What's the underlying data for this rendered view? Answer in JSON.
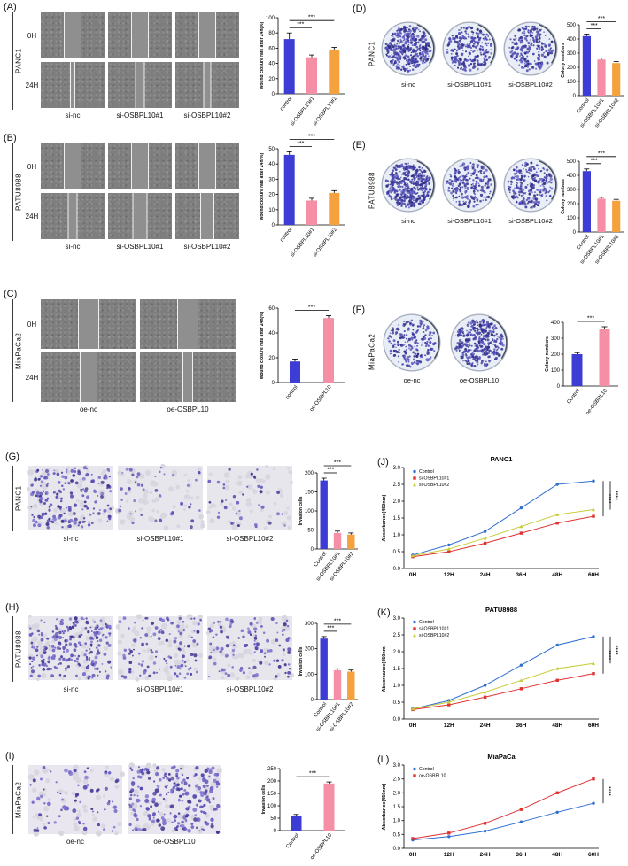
{
  "panels": [
    {
      "label": "(A)",
      "cell_line": "PANC1",
      "row_labels": [
        "0H",
        "24H"
      ],
      "col_labels": [
        "si-nc",
        "si-OSBPL10#1",
        "si-OSBPL10#2"
      ]
    },
    {
      "label": "(B)",
      "cell_line": "PATU8988",
      "row_labels": [
        "0H",
        "24H"
      ],
      "col_labels": [
        "si-nc",
        "si-OSBPL10#1",
        "si-OSBPL10#2"
      ]
    },
    {
      "label": "(C)",
      "cell_line": "MiaPaCa2",
      "row_labels": [
        "0H",
        "24H"
      ],
      "col_labels": [
        "oe-nc",
        "oe-OSBPL10"
      ]
    },
    {
      "label": "(D)",
      "cell_line": "PANC1",
      "col_labels": [
        "si-nc",
        "si-OSBPL10#1",
        "si-OSBPL10#2"
      ]
    },
    {
      "label": "(E)",
      "cell_line": "PATU8988",
      "col_labels": [
        "si-nc",
        "si-OSBPL10#1",
        "si-OSBPL10#2"
      ]
    },
    {
      "label": "(F)",
      "cell_line": "MiaPaCa2",
      "col_labels": [
        "oe-nc",
        "oe-OSBPL10"
      ]
    },
    {
      "label": "(G)",
      "cell_line": "PANC1",
      "col_labels": [
        "si-nc",
        "si-OSBPL10#1",
        "si-OSBPL10#2"
      ]
    },
    {
      "label": "(H)",
      "cell_line": "PATU8988",
      "col_labels": [
        "si-nc",
        "si-OSBPL10#1",
        "si-OSBPL10#2"
      ]
    },
    {
      "label": "(I)",
      "cell_line": "MiaPaCa2",
      "col_labels": [
        "oe-nc",
        "oe-OSBPL10"
      ]
    },
    {
      "label": "(J)"
    },
    {
      "label": "(K)"
    },
    {
      "label": "(L)"
    }
  ],
  "chart_data": [
    {
      "id": "A",
      "type": "bar",
      "ylabel": "Wound closure rate after 24h(%)",
      "categories": [
        "control",
        "si-OSBPL10#1",
        "si-OSBPL10#2"
      ],
      "values": [
        72,
        48,
        58
      ],
      "errors": [
        8,
        3,
        3
      ],
      "ylim": [
        0,
        100
      ],
      "yticks": [
        0,
        20,
        40,
        60,
        80,
        100
      ],
      "colors": [
        "#3d3dd6",
        "#f48fa6",
        "#f5a13d"
      ],
      "significance": [
        {
          "from": 0,
          "to": 1,
          "label": "***"
        },
        {
          "from": 0,
          "to": 2,
          "label": "***"
        }
      ]
    },
    {
      "id": "B",
      "type": "bar",
      "ylabel": "Wound closure rate after 24h(%)",
      "categories": [
        "control",
        "si-OSBPL10#1",
        "si-OSBPL10#2"
      ],
      "values": [
        46,
        16,
        21
      ],
      "errors": [
        2,
        1.5,
        1.5
      ],
      "ylim": [
        0,
        50
      ],
      "yticks": [
        0,
        10,
        20,
        30,
        40,
        50
      ],
      "colors": [
        "#3d3dd6",
        "#f48fa6",
        "#f5a13d"
      ],
      "significance": [
        {
          "from": 0,
          "to": 1,
          "label": "***"
        },
        {
          "from": 0,
          "to": 2,
          "label": "***"
        }
      ]
    },
    {
      "id": "C",
      "type": "bar",
      "ylabel": "Wound closure rate after 24h(%)",
      "categories": [
        "control",
        "oe-OSBPL10"
      ],
      "values": [
        17,
        52
      ],
      "errors": [
        2,
        2
      ],
      "ylim": [
        0,
        60
      ],
      "yticks": [
        0,
        20,
        40,
        60
      ],
      "colors": [
        "#3d3dd6",
        "#f48fa6"
      ],
      "significance": [
        {
          "from": 0,
          "to": 1,
          "label": "***"
        }
      ]
    },
    {
      "id": "D",
      "type": "bar",
      "ylabel": "Colony numbers",
      "categories": [
        "Control",
        "si-OSBPL10#1",
        "si-OSBPL10#2"
      ],
      "values": [
        420,
        255,
        230
      ],
      "errors": [
        15,
        10,
        10
      ],
      "ylim": [
        0,
        500
      ],
      "yticks": [
        0,
        100,
        200,
        300,
        400,
        500
      ],
      "colors": [
        "#3d3dd6",
        "#f48fa6",
        "#f5a13d"
      ],
      "significance": [
        {
          "from": 0,
          "to": 1,
          "label": "***"
        },
        {
          "from": 0,
          "to": 2,
          "label": "***"
        }
      ]
    },
    {
      "id": "E",
      "type": "bar",
      "ylabel": "Colony numbers",
      "categories": [
        "Control",
        "si-OSBPL10#1",
        "si-OSBPL10#2"
      ],
      "values": [
        430,
        235,
        220
      ],
      "errors": [
        15,
        10,
        10
      ],
      "ylim": [
        0,
        500
      ],
      "yticks": [
        0,
        100,
        200,
        300,
        400,
        500
      ],
      "colors": [
        "#3d3dd6",
        "#f48fa6",
        "#f5a13d"
      ],
      "significance": [
        {
          "from": 0,
          "to": 1,
          "label": "***"
        },
        {
          "from": 0,
          "to": 2,
          "label": "***"
        }
      ]
    },
    {
      "id": "F",
      "type": "bar",
      "ylabel": "Colony numbers",
      "categories": [
        "Control",
        "oe-OSBPL10"
      ],
      "values": [
        200,
        360
      ],
      "errors": [
        10,
        12
      ],
      "ylim": [
        0,
        400
      ],
      "yticks": [
        0,
        100,
        200,
        300,
        400
      ],
      "colors": [
        "#3d3dd6",
        "#f48fa6"
      ],
      "significance": [
        {
          "from": 0,
          "to": 1,
          "label": "***"
        }
      ]
    },
    {
      "id": "G",
      "type": "bar",
      "ylabel": "Invasion cells",
      "categories": [
        "Control",
        "si-OSBPL10#1",
        "si-OSBPL10#2"
      ],
      "values": [
        180,
        42,
        38
      ],
      "errors": [
        6,
        5,
        4
      ],
      "ylim": [
        0,
        200
      ],
      "yticks": [
        0,
        50,
        100,
        150,
        200
      ],
      "colors": [
        "#3d3dd6",
        "#f48fa6",
        "#f5a13d"
      ],
      "significance": [
        {
          "from": 0,
          "to": 1,
          "label": "***"
        },
        {
          "from": 0,
          "to": 2,
          "label": "***"
        }
      ]
    },
    {
      "id": "H",
      "type": "bar",
      "ylabel": "Invasion cells",
      "categories": [
        "Control",
        "si-OSBPL10#1",
        "si-OSBPL10#2"
      ],
      "values": [
        240,
        115,
        110
      ],
      "errors": [
        8,
        6,
        6
      ],
      "ylim": [
        0,
        300
      ],
      "yticks": [
        0,
        100,
        200,
        300
      ],
      "colors": [
        "#3d3dd6",
        "#f48fa6",
        "#f5a13d"
      ],
      "significance": [
        {
          "from": 0,
          "to": 1,
          "label": "***"
        },
        {
          "from": 0,
          "to": 2,
          "label": "***"
        }
      ]
    },
    {
      "id": "I",
      "type": "bar",
      "ylabel": "Invasion cells",
      "categories": [
        "Control",
        "oe-OSBPL10"
      ],
      "values": [
        60,
        190
      ],
      "errors": [
        5,
        6
      ],
      "ylim": [
        0,
        250
      ],
      "yticks": [
        0,
        50,
        100,
        150,
        200,
        250
      ],
      "colors": [
        "#3d3dd6",
        "#f48fa6"
      ],
      "significance": [
        {
          "from": 0,
          "to": 1,
          "label": "***"
        }
      ]
    },
    {
      "id": "J",
      "type": "line",
      "title": "PANC1",
      "ylabel": "Absorbance(450nm)",
      "x": [
        "0H",
        "12H",
        "24H",
        "36H",
        "48H",
        "60H"
      ],
      "ylim": [
        0,
        3.0
      ],
      "yticks": [
        0,
        0.5,
        1.0,
        1.5,
        2.0,
        2.5,
        3.0
      ],
      "series": [
        {
          "name": "Control",
          "color": "#2f6fd0",
          "marker": "circle",
          "values": [
            0.4,
            0.7,
            1.1,
            1.8,
            2.5,
            2.6
          ]
        },
        {
          "name": "si-OSBPL10#1",
          "color": "#e03030",
          "marker": "square",
          "values": [
            0.35,
            0.5,
            0.75,
            1.05,
            1.35,
            1.55
          ]
        },
        {
          "name": "si-OSBPL10#2",
          "color": "#c9cc3a",
          "marker": "triangle",
          "values": [
            0.38,
            0.58,
            0.9,
            1.25,
            1.6,
            1.75
          ]
        }
      ],
      "significance": [
        {
          "series": 1,
          "label": "****"
        },
        {
          "series": 2,
          "label": "****"
        }
      ]
    },
    {
      "id": "K",
      "type": "line",
      "title": "PATU8988",
      "ylabel": "Absorbance(450nm)",
      "x": [
        "0H",
        "12H",
        "24H",
        "36H",
        "48H",
        "60H"
      ],
      "ylim": [
        0,
        3.0
      ],
      "yticks": [
        0,
        0.5,
        1.0,
        1.5,
        2.0,
        2.5,
        3.0
      ],
      "series": [
        {
          "name": "Control",
          "color": "#2f6fd0",
          "marker": "circle",
          "values": [
            0.3,
            0.55,
            1.0,
            1.6,
            2.2,
            2.45
          ]
        },
        {
          "name": "si-OSBPL10#1",
          "color": "#e03030",
          "marker": "square",
          "values": [
            0.28,
            0.42,
            0.65,
            0.9,
            1.15,
            1.35
          ]
        },
        {
          "name": "si-OSBPL10#2",
          "color": "#c9cc3a",
          "marker": "triangle",
          "values": [
            0.3,
            0.5,
            0.8,
            1.15,
            1.5,
            1.65
          ]
        }
      ],
      "significance": [
        {
          "series": 1,
          "label": "****"
        },
        {
          "series": 2,
          "label": "****"
        }
      ]
    },
    {
      "id": "L",
      "type": "line",
      "title": "MiaPaCa",
      "ylabel": "Absorbance(450nm)",
      "x": [
        "0H",
        "12H",
        "24H",
        "36H",
        "48H",
        "60H"
      ],
      "ylim": [
        0,
        3.0
      ],
      "yticks": [
        0,
        0.5,
        1.0,
        1.5,
        2.0,
        2.5,
        3.0
      ],
      "series": [
        {
          "name": "Control",
          "color": "#2f6fd0",
          "marker": "circle",
          "values": [
            0.3,
            0.42,
            0.62,
            0.95,
            1.3,
            1.62
          ]
        },
        {
          "name": "oe-OSBPL10",
          "color": "#e03030",
          "marker": "square",
          "values": [
            0.35,
            0.55,
            0.9,
            1.4,
            2.0,
            2.5
          ]
        }
      ],
      "significance": [
        {
          "series": 1,
          "label": "****"
        }
      ]
    }
  ]
}
